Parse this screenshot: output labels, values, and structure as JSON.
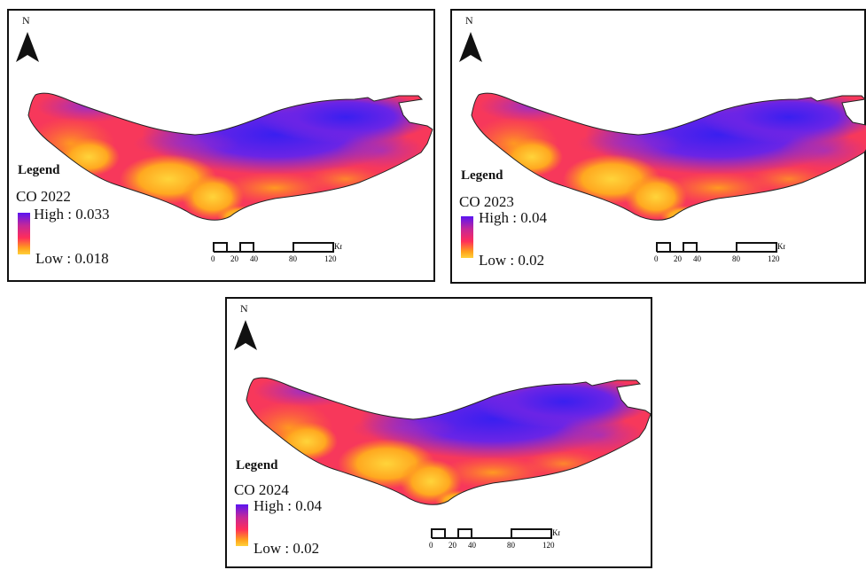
{
  "colors": {
    "ramp_high": "#5a14f2",
    "ramp_mid_high": "#c3279a",
    "ramp_mid": "#ff2d5a",
    "ramp_mid_low": "#ffa01c",
    "ramp_low": "#ffd13a",
    "frame": "#111111"
  },
  "north_arrow": {
    "label": "N",
    "icon": "north-arrow-icon"
  },
  "scalebar": {
    "ticks": [
      "0",
      "20",
      "40",
      "80",
      "120"
    ],
    "unit": "Km"
  },
  "panels": [
    {
      "legend_title": "Legend",
      "layer": "CO 2022",
      "high": "High : 0.033",
      "low": "Low : 0.018"
    },
    {
      "legend_title": "Legend",
      "layer": "CO 2023",
      "high": "High : 0.04",
      "low": "Low : 0.02"
    },
    {
      "legend_title": "Legend",
      "layer": "CO 2024",
      "high": "High : 0.04",
      "low": "Low : 0.02"
    }
  ]
}
